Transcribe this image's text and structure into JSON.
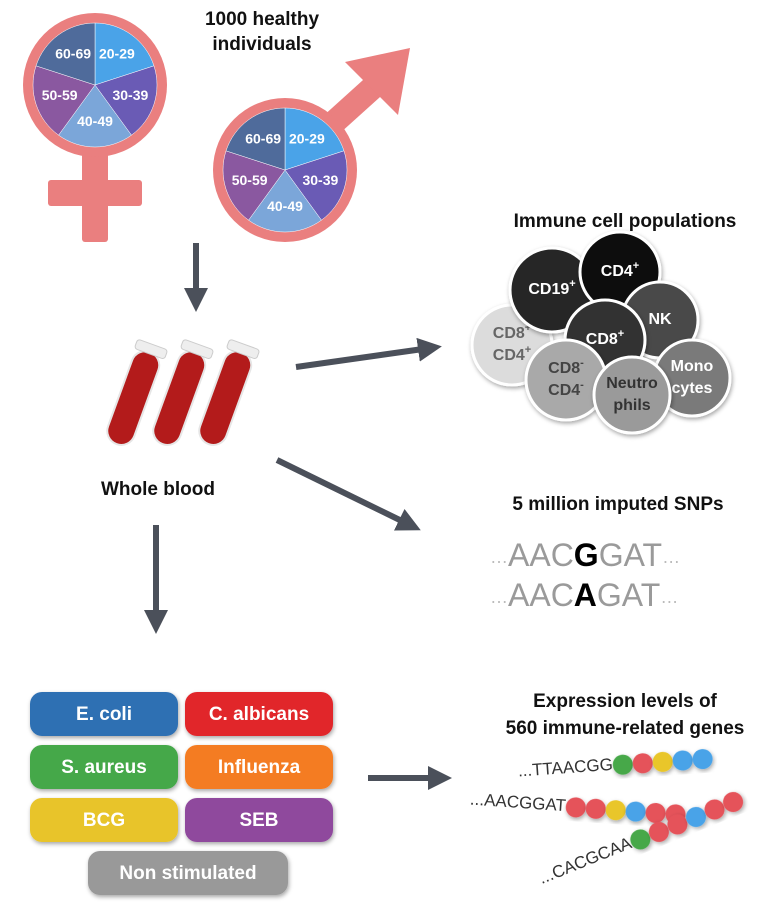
{
  "cohort": {
    "title_lines": [
      "1000 healthy",
      "individuals"
    ],
    "female": {
      "segments": [
        "20-29",
        "30-39",
        "40-49",
        "50-59",
        "60-69"
      ]
    },
    "male": {
      "segments": [
        "20-29",
        "30-39",
        "40-49",
        "50-59",
        "60-69"
      ]
    }
  },
  "sample": {
    "label": "Whole blood"
  },
  "immune_cells": {
    "title": "Immune cell populations",
    "cells": [
      {
        "lines": [
          {
            "text": "CD8",
            "sup": "+"
          },
          {
            "text": "CD4",
            "sup": "+"
          }
        ]
      },
      {
        "lines": [
          {
            "text": "CD19",
            "sup": "+"
          }
        ]
      },
      {
        "lines": [
          {
            "text": "CD4",
            "sup": "+"
          }
        ]
      },
      {
        "lines": [
          {
            "text": "NK"
          }
        ]
      },
      {
        "lines": [
          {
            "text": "CD8",
            "sup": "+"
          }
        ]
      },
      {
        "lines": [
          {
            "text": "CD8",
            "sup": "-"
          },
          {
            "text": "CD4",
            "sup": "-"
          }
        ]
      },
      {
        "lines": [
          {
            "text": "Mono"
          },
          {
            "text": "cytes"
          }
        ]
      },
      {
        "lines": [
          {
            "text": "Neutro"
          },
          {
            "text": "phils"
          }
        ]
      }
    ]
  },
  "snps": {
    "title": "5 million imputed SNPs",
    "sequences": [
      {
        "prefix": "…",
        "before": "AAC",
        "allele": "G",
        "after": "GAT",
        "suffix": "…"
      },
      {
        "prefix": "…",
        "before": "AAC",
        "allele": "A",
        "after": "GAT",
        "suffix": "…"
      }
    ]
  },
  "expression": {
    "title_lines": [
      "Expression levels of",
      "560 immune-related genes"
    ],
    "sequences": [
      "...TTAACGG",
      "...AACGGAT",
      "...CACGCAA"
    ]
  },
  "stimuli": [
    {
      "label": "E. coli",
      "color": "#2f70b3"
    },
    {
      "label": "C. albicans",
      "color": "#e1262c"
    },
    {
      "label": "S. aureus",
      "color": "#45a84a"
    },
    {
      "label": "Influenza",
      "color": "#f47c20"
    },
    {
      "label": "BCG",
      "color": "#e8c42a"
    },
    {
      "label": "SEB",
      "color": "#8f4a9d"
    },
    {
      "label": "Non stimulated",
      "color": "#999999"
    }
  ]
}
